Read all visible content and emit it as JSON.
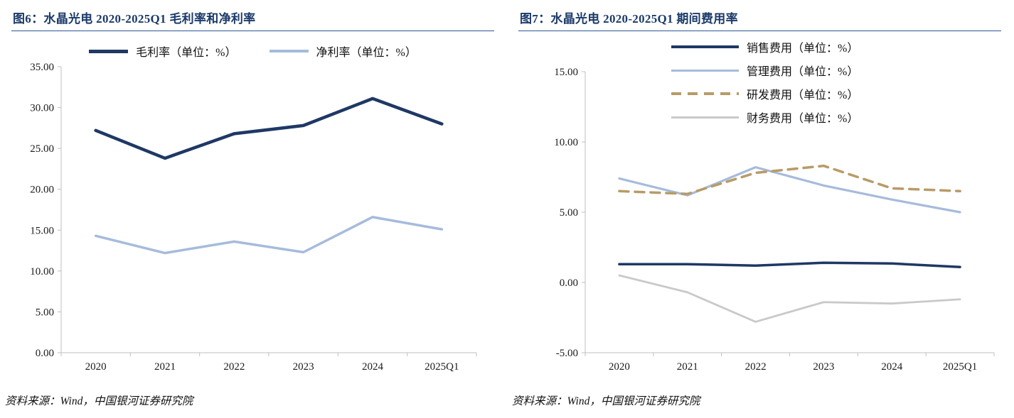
{
  "colors": {
    "title": "#1B3A69",
    "rule": "#2F5597",
    "axis": "#BFBFBF",
    "text": "#1A1A1A"
  },
  "chart_data": [
    {
      "type": "line",
      "title": "图6：水晶光电 2020-2025Q1 毛利率和净利率",
      "source": "资料来源：Wind，中国银河证券研究院",
      "categories": [
        "2020",
        "2021",
        "2022",
        "2023",
        "2024",
        "2025Q1"
      ],
      "ylim": [
        0,
        35
      ],
      "ytick_step": 5,
      "grid": false,
      "legend_position": "top-horizontal",
      "series": [
        {
          "id": "gross-margin",
          "name": "毛利率（单位：%）",
          "color": "#1F3864",
          "width": 4.5,
          "values": [
            27.2,
            23.8,
            26.8,
            27.8,
            31.1,
            28.0
          ]
        },
        {
          "id": "net-margin",
          "name": "净利率（单位：%）",
          "color": "#A6BBDC",
          "width": 3.5,
          "values": [
            14.3,
            12.2,
            13.6,
            12.3,
            16.6,
            15.1
          ]
        }
      ]
    },
    {
      "type": "line",
      "title": "图7：水晶光电 2020-2025Q1 期间费用率",
      "source": "资料来源：Wind，中国银河证券研究院",
      "categories": [
        "2020",
        "2021",
        "2022",
        "2023",
        "2024",
        "2025Q1"
      ],
      "ylim": [
        -5,
        15
      ],
      "ytick_step": 5,
      "grid": false,
      "legend_position": "top-vertical",
      "series": [
        {
          "id": "selling-expense",
          "name": "销售费用（单位：%）",
          "color": "#1F3864",
          "width": 3.5,
          "values": [
            1.3,
            1.3,
            1.2,
            1.4,
            1.35,
            1.1
          ]
        },
        {
          "id": "admin-expense",
          "name": "管理费用（单位：%）",
          "color": "#A6BBDC",
          "width": 3.2,
          "values": [
            7.4,
            6.2,
            8.2,
            6.9,
            5.9,
            5.0
          ]
        },
        {
          "id": "rd-expense",
          "name": "研发费用（单位：%）",
          "color": "#B89B68",
          "width": 3.5,
          "dash": "13 9",
          "values": [
            6.5,
            6.3,
            7.8,
            8.3,
            6.7,
            6.5
          ]
        },
        {
          "id": "finance-expense",
          "name": "财务费用（单位：%）",
          "color": "#C9C9C9",
          "width": 2.8,
          "values": [
            0.5,
            -0.7,
            -2.8,
            -1.4,
            -1.5,
            -1.2
          ]
        }
      ]
    }
  ]
}
